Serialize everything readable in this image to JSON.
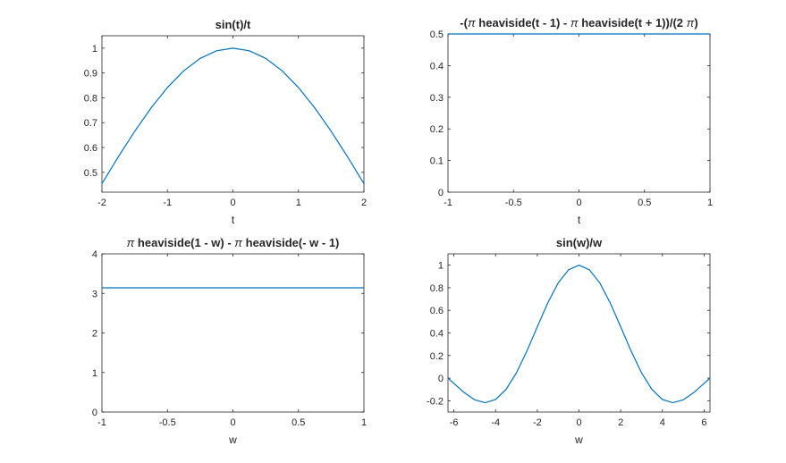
{
  "chart_data": [
    {
      "type": "line",
      "title_parts": [
        {
          "t": "sin(t)/t",
          "greek": false
        }
      ],
      "xlabel": "t",
      "ylabel": "",
      "xlim": [
        -2,
        2
      ],
      "ylim": [
        0.42,
        1.05
      ],
      "xticks": [
        -2,
        -1,
        0,
        1,
        2
      ],
      "xtick_labels": [
        "-2",
        "-1",
        "0",
        "1",
        "2"
      ],
      "yticks": [
        0.5,
        0.6,
        0.7,
        0.8,
        0.9,
        1
      ],
      "ytick_labels": [
        "0.5",
        "0.6",
        "0.7",
        "0.8",
        "0.9",
        "1"
      ],
      "grid": false,
      "line_color": "#0072BD",
      "series": [
        {
          "x": [
            -2,
            -1.75,
            -1.5,
            -1.25,
            -1,
            -0.75,
            -0.5,
            -0.25,
            0,
            0.25,
            0.5,
            0.75,
            1,
            1.25,
            1.5,
            1.75,
            2
          ],
          "y": [
            0.4546,
            0.5623,
            0.665,
            0.7592,
            0.8415,
            0.9089,
            0.9589,
            0.9896,
            1,
            0.9896,
            0.9589,
            0.9089,
            0.8415,
            0.7592,
            0.665,
            0.5623,
            0.4546
          ]
        }
      ]
    },
    {
      "type": "line",
      "title_parts": [
        {
          "t": "-(",
          "greek": false
        },
        {
          "t": "π",
          "greek": true
        },
        {
          "t": " heaviside(t - 1) - ",
          "greek": false
        },
        {
          "t": "π",
          "greek": true
        },
        {
          "t": " heaviside(t + 1))/(2 ",
          "greek": false
        },
        {
          "t": "π",
          "greek": true
        },
        {
          "t": ")",
          "greek": false
        }
      ],
      "xlabel": "t",
      "ylabel": "",
      "xlim": [
        -1,
        1
      ],
      "ylim": [
        0,
        0.5
      ],
      "xticks": [
        -1,
        -0.5,
        0,
        0.5,
        1
      ],
      "xtick_labels": [
        "-1",
        "-0.5",
        "0",
        "0.5",
        "1"
      ],
      "yticks": [
        0,
        0.1,
        0.2,
        0.3,
        0.4,
        0.5
      ],
      "ytick_labels": [
        "0",
        "0.1",
        "0.2",
        "0.3",
        "0.4",
        "0.5"
      ],
      "grid": false,
      "line_color": "#0072BD",
      "series": [
        {
          "x": [
            -1,
            1
          ],
          "y": [
            0.5,
            0.5
          ]
        }
      ]
    },
    {
      "type": "line",
      "title_parts": [
        {
          "t": "π",
          "greek": true
        },
        {
          "t": " heaviside(1 - w) - ",
          "greek": false
        },
        {
          "t": "π",
          "greek": true
        },
        {
          "t": " heaviside(- w - 1)",
          "greek": false
        }
      ],
      "xlabel": "w",
      "ylabel": "",
      "xlim": [
        -1,
        1
      ],
      "ylim": [
        0,
        4
      ],
      "xticks": [
        -1,
        -0.5,
        0,
        0.5,
        1
      ],
      "xtick_labels": [
        "-1",
        "-0.5",
        "0",
        "0.5",
        "1"
      ],
      "yticks": [
        0,
        1,
        2,
        3,
        4
      ],
      "ytick_labels": [
        "0",
        "1",
        "2",
        "3",
        "4"
      ],
      "grid": false,
      "line_color": "#0072BD",
      "series": [
        {
          "x": [
            -1,
            1
          ],
          "y": [
            3.1416,
            3.1416
          ]
        }
      ]
    },
    {
      "type": "line",
      "title_parts": [
        {
          "t": "sin(w)/w",
          "greek": false
        }
      ],
      "xlabel": "w",
      "ylabel": "",
      "xlim": [
        -6.2832,
        6.2832
      ],
      "ylim": [
        -0.3,
        1.1
      ],
      "xticks": [
        -6,
        -4,
        -2,
        0,
        2,
        4,
        6
      ],
      "xtick_labels": [
        "-6",
        "-4",
        "-2",
        "0",
        "2",
        "4",
        "6"
      ],
      "yticks": [
        -0.2,
        0,
        0.2,
        0.4,
        0.6,
        0.8,
        1
      ],
      "ytick_labels": [
        "-0.2",
        "0",
        "0.2",
        "0.4",
        "0.6",
        "0.8",
        "1"
      ],
      "grid": false,
      "line_color": "#0072BD",
      "series": [
        {
          "x": [
            -6.2832,
            -6,
            -5.5,
            -5,
            -4.5,
            -4,
            -3.5,
            -3,
            -2.5,
            -2,
            -1.5,
            -1,
            -0.5,
            0,
            0.5,
            1,
            1.5,
            2,
            2.5,
            3,
            3.5,
            4,
            4.5,
            5,
            5.5,
            6,
            6.2832
          ],
          "y": [
            0,
            -0.0466,
            -0.1282,
            -0.1918,
            -0.2172,
            -0.1892,
            -0.1002,
            0.047,
            0.2394,
            0.4546,
            0.665,
            0.8415,
            0.9589,
            1,
            0.9589,
            0.8415,
            0.665,
            0.4546,
            0.2394,
            0.047,
            -0.1002,
            -0.1892,
            -0.2172,
            -0.1918,
            -0.1282,
            -0.0466,
            0
          ]
        }
      ]
    }
  ]
}
